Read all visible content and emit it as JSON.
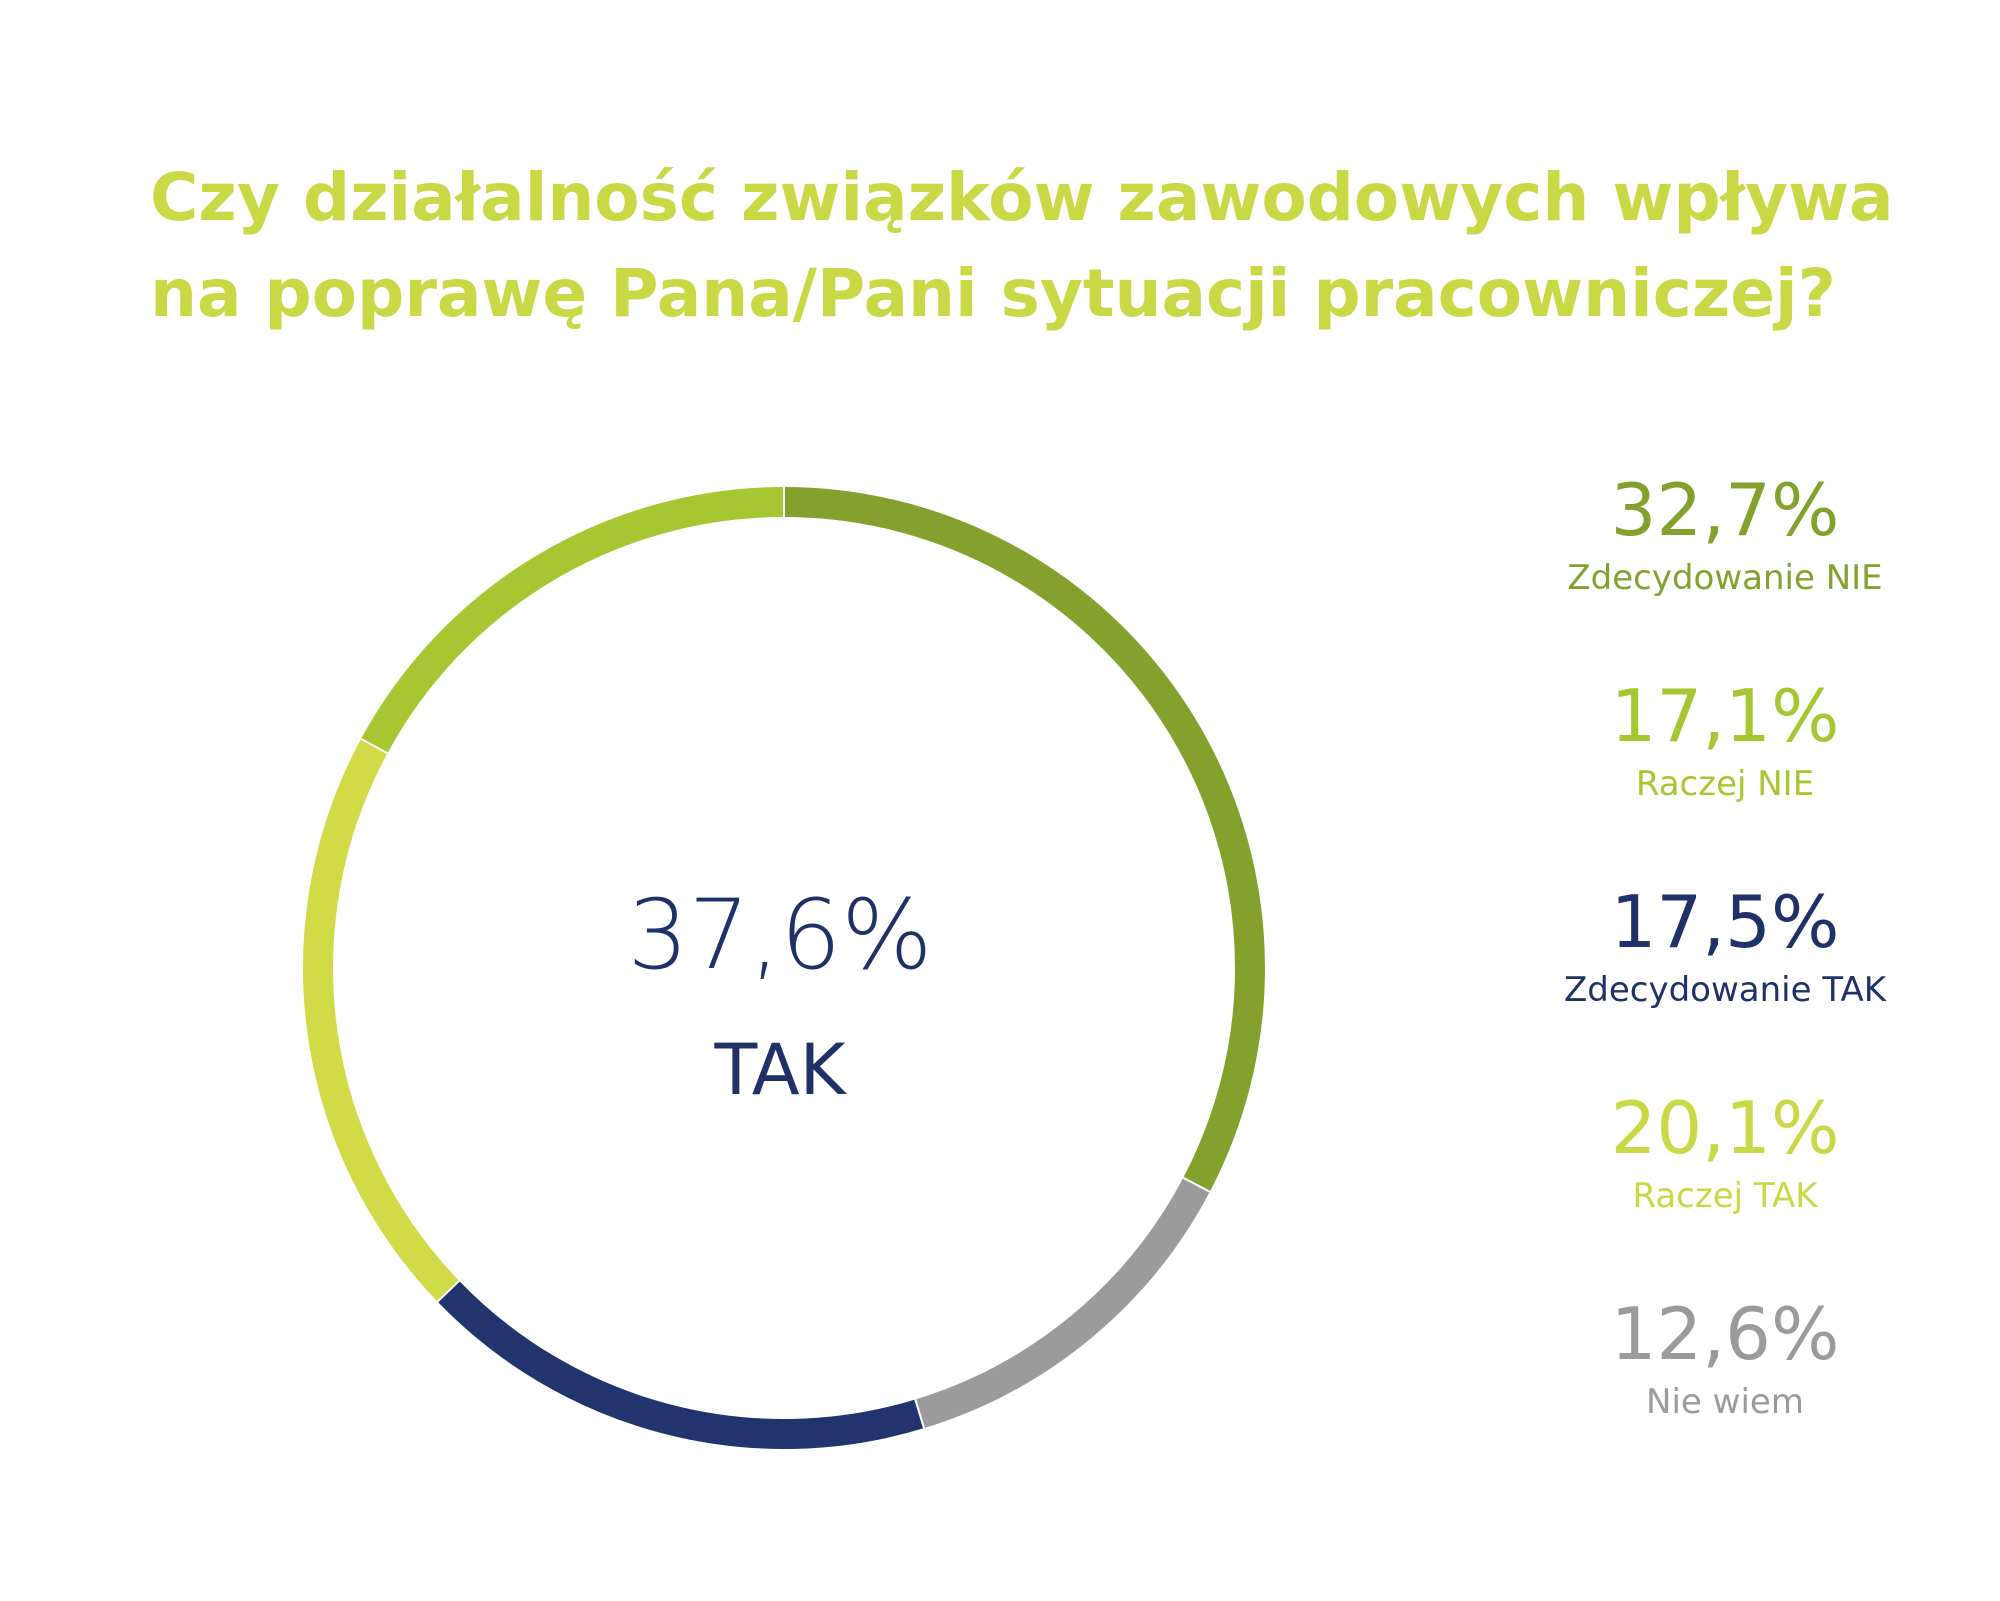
{
  "title_lines": [
    "Czy działalność związków zawodowych wpływa",
    "na poprawę Pana/Pani sytuacji pracowniczej?"
  ],
  "center": {
    "value": "37,6%",
    "label": "TAK"
  },
  "chart_data": {
    "type": "pie",
    "title": "Czy działalność związków zawodowych wpływa na poprawę Pana/Pani sytuacji pracowniczej?",
    "slices": [
      {
        "label": "Zdecydowanie NIE",
        "value": 32.7,
        "display": "32,7%",
        "color": "#84a12e"
      },
      {
        "label": "Nie wiem",
        "value": 12.6,
        "display": "12,6%",
        "color": "#9b9b9b"
      },
      {
        "label": "Zdecydowanie TAK",
        "value": 17.5,
        "display": "17,5%",
        "color": "#22346d"
      },
      {
        "label": "Raczej TAK",
        "value": 20.1,
        "display": "20,1%",
        "color": "#d1db48"
      },
      {
        "label": "Raczej NIE",
        "value": 17.1,
        "display": "17,1%",
        "color": "#a8c632"
      }
    ]
  },
  "legend": [
    {
      "value": "32,7%",
      "label": "Zdecydowanie NIE",
      "color": "#84a12e"
    },
    {
      "value": "17,1%",
      "label": "Raczej NIE",
      "color": "#a8c632"
    },
    {
      "value": "17,5%",
      "label": "Zdecydowanie TAK",
      "color": "#1f3167"
    },
    {
      "value": "20,1%",
      "label": "Raczej TAK",
      "color": "#c9d845"
    },
    {
      "value": "12,6%",
      "label": "Nie wiem",
      "color": "#9b9b9b"
    }
  ]
}
